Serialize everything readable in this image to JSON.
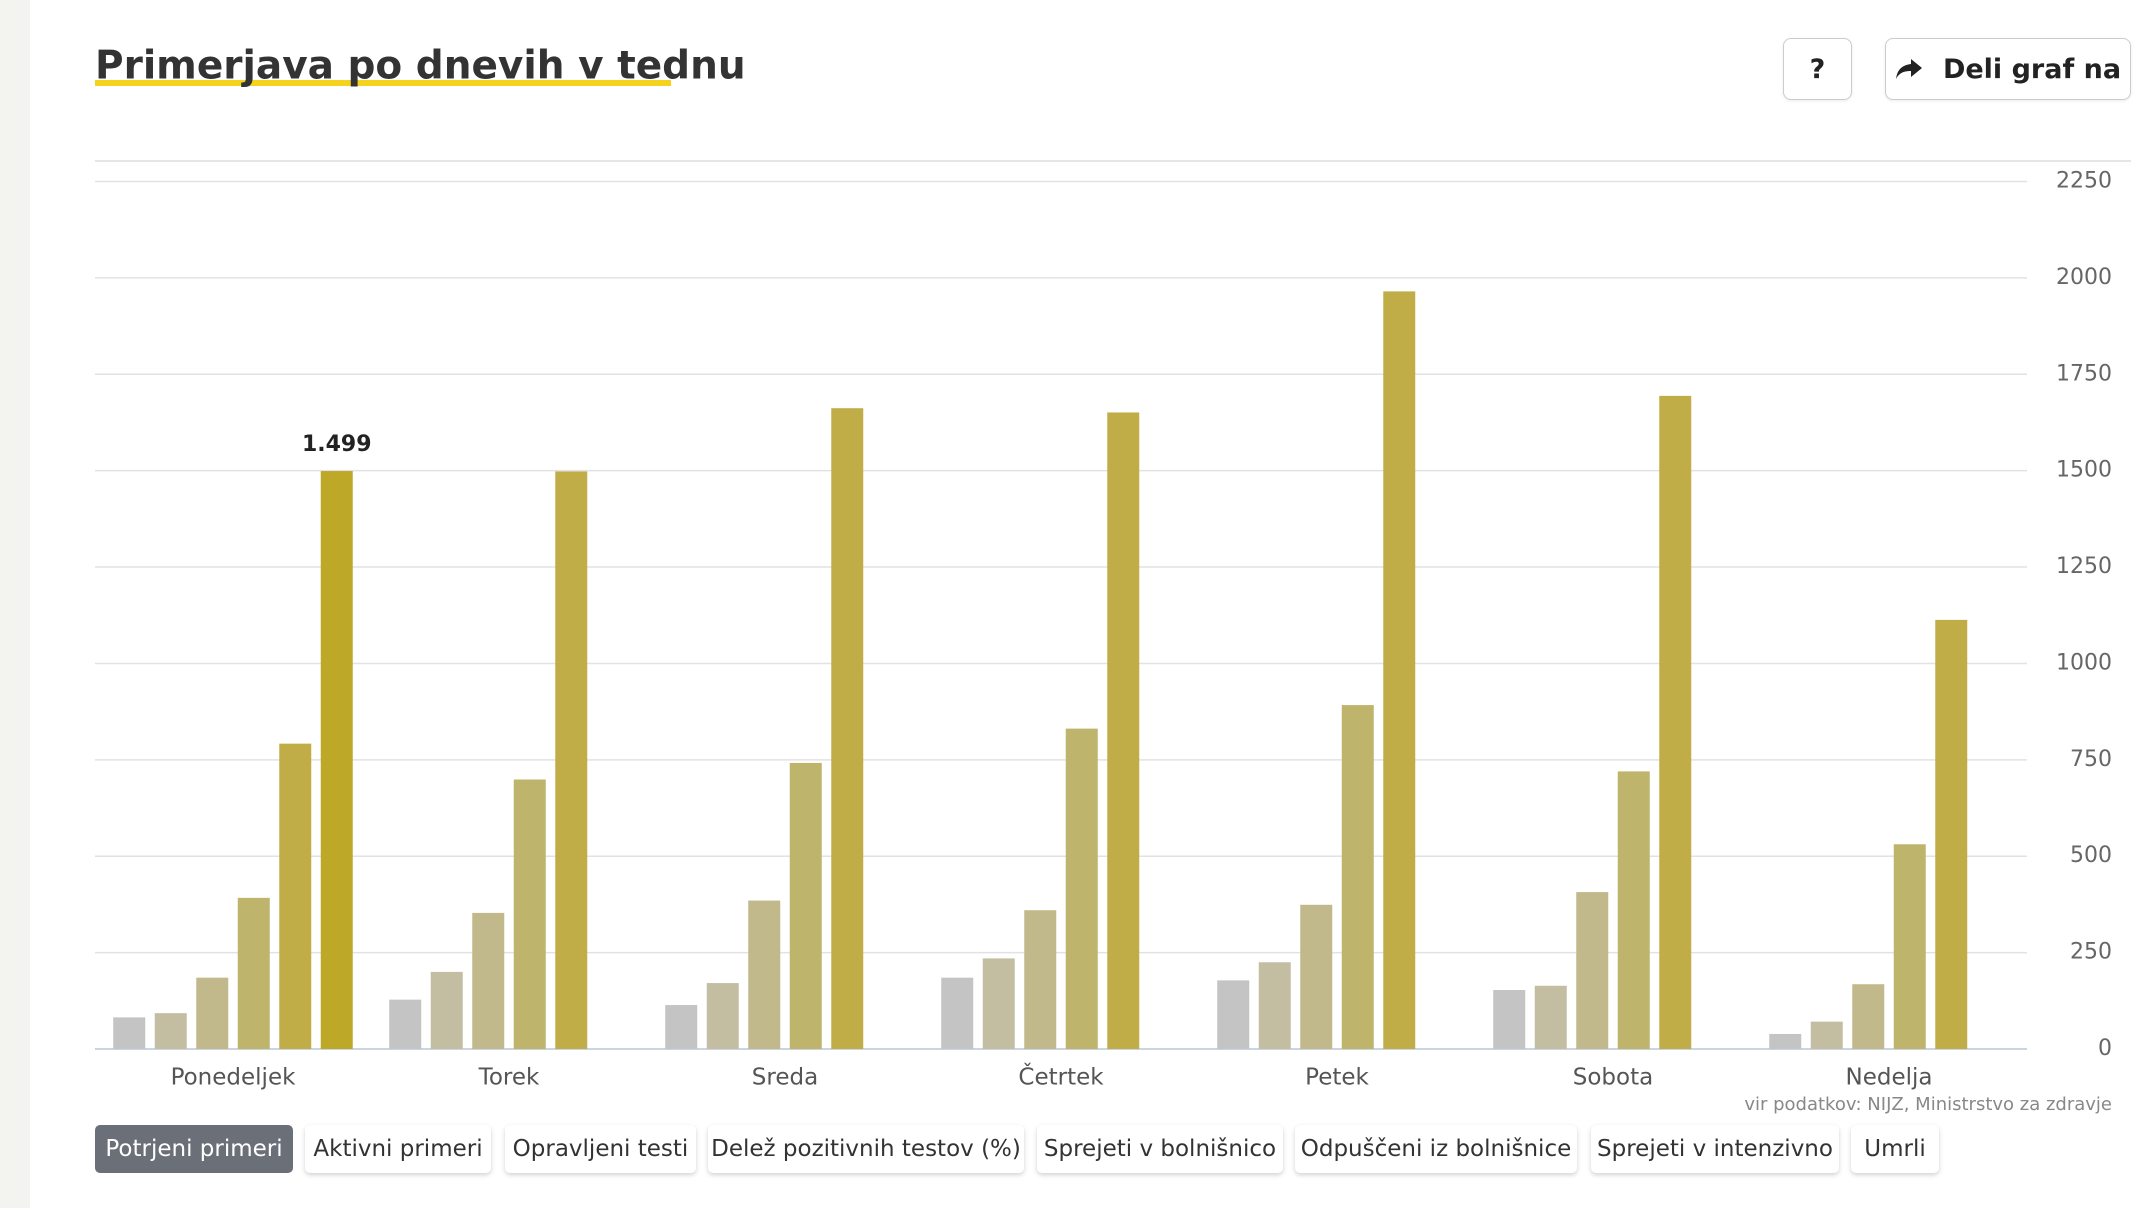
{
  "header": {
    "help": "?",
    "share": "Deli graf na"
  },
  "chart_data": {
    "type": "bar",
    "title": "Primerjava po dnevih v tednu",
    "categories": [
      "Ponedeljek",
      "Torek",
      "Sreda",
      "Četrtek",
      "Petek",
      "Sobota",
      "Nedelja"
    ],
    "series": [
      {
        "color": "#c4c4c4",
        "values": [
          82,
          128,
          114,
          185,
          178,
          153,
          39
        ]
      },
      {
        "color": "#c3bea2",
        "values": [
          93,
          200,
          171,
          235,
          225,
          164,
          71
        ]
      },
      {
        "color": "#c1b98b",
        "values": [
          185,
          353,
          385,
          360,
          374,
          407,
          168
        ]
      },
      {
        "color": "#beb46c",
        "values": [
          392,
          699,
          742,
          831,
          892,
          720,
          531
        ]
      },
      {
        "color": "#c0ad48",
        "values": [
          792,
          1498,
          1662,
          1651,
          1965,
          1694,
          1113
        ]
      },
      {
        "color": "#bea827",
        "values": [
          1499,
          null,
          null,
          null,
          null,
          null,
          null
        ],
        "value_labels": [
          "1.499",
          null,
          null,
          null,
          null,
          null,
          null
        ]
      }
    ],
    "ylim": [
      0,
      2250
    ],
    "yticks": [
      0,
      250,
      500,
      750,
      1000,
      1250,
      1500,
      1750,
      2000,
      2250
    ],
    "grid": true,
    "source": "vir podatkov: NIJZ, Ministrstvo za zdravje"
  },
  "tabs": [
    "Potrjeni primeri",
    "Aktivni primeri",
    "Opravljeni testi",
    "Delež pozitivnih testov (%)",
    "Sprejeti v bolnišnico",
    "Odpuščeni iz bolnišnice",
    "Sprejeti v intenzivno",
    "Umrli"
  ],
  "active_tab": 0
}
